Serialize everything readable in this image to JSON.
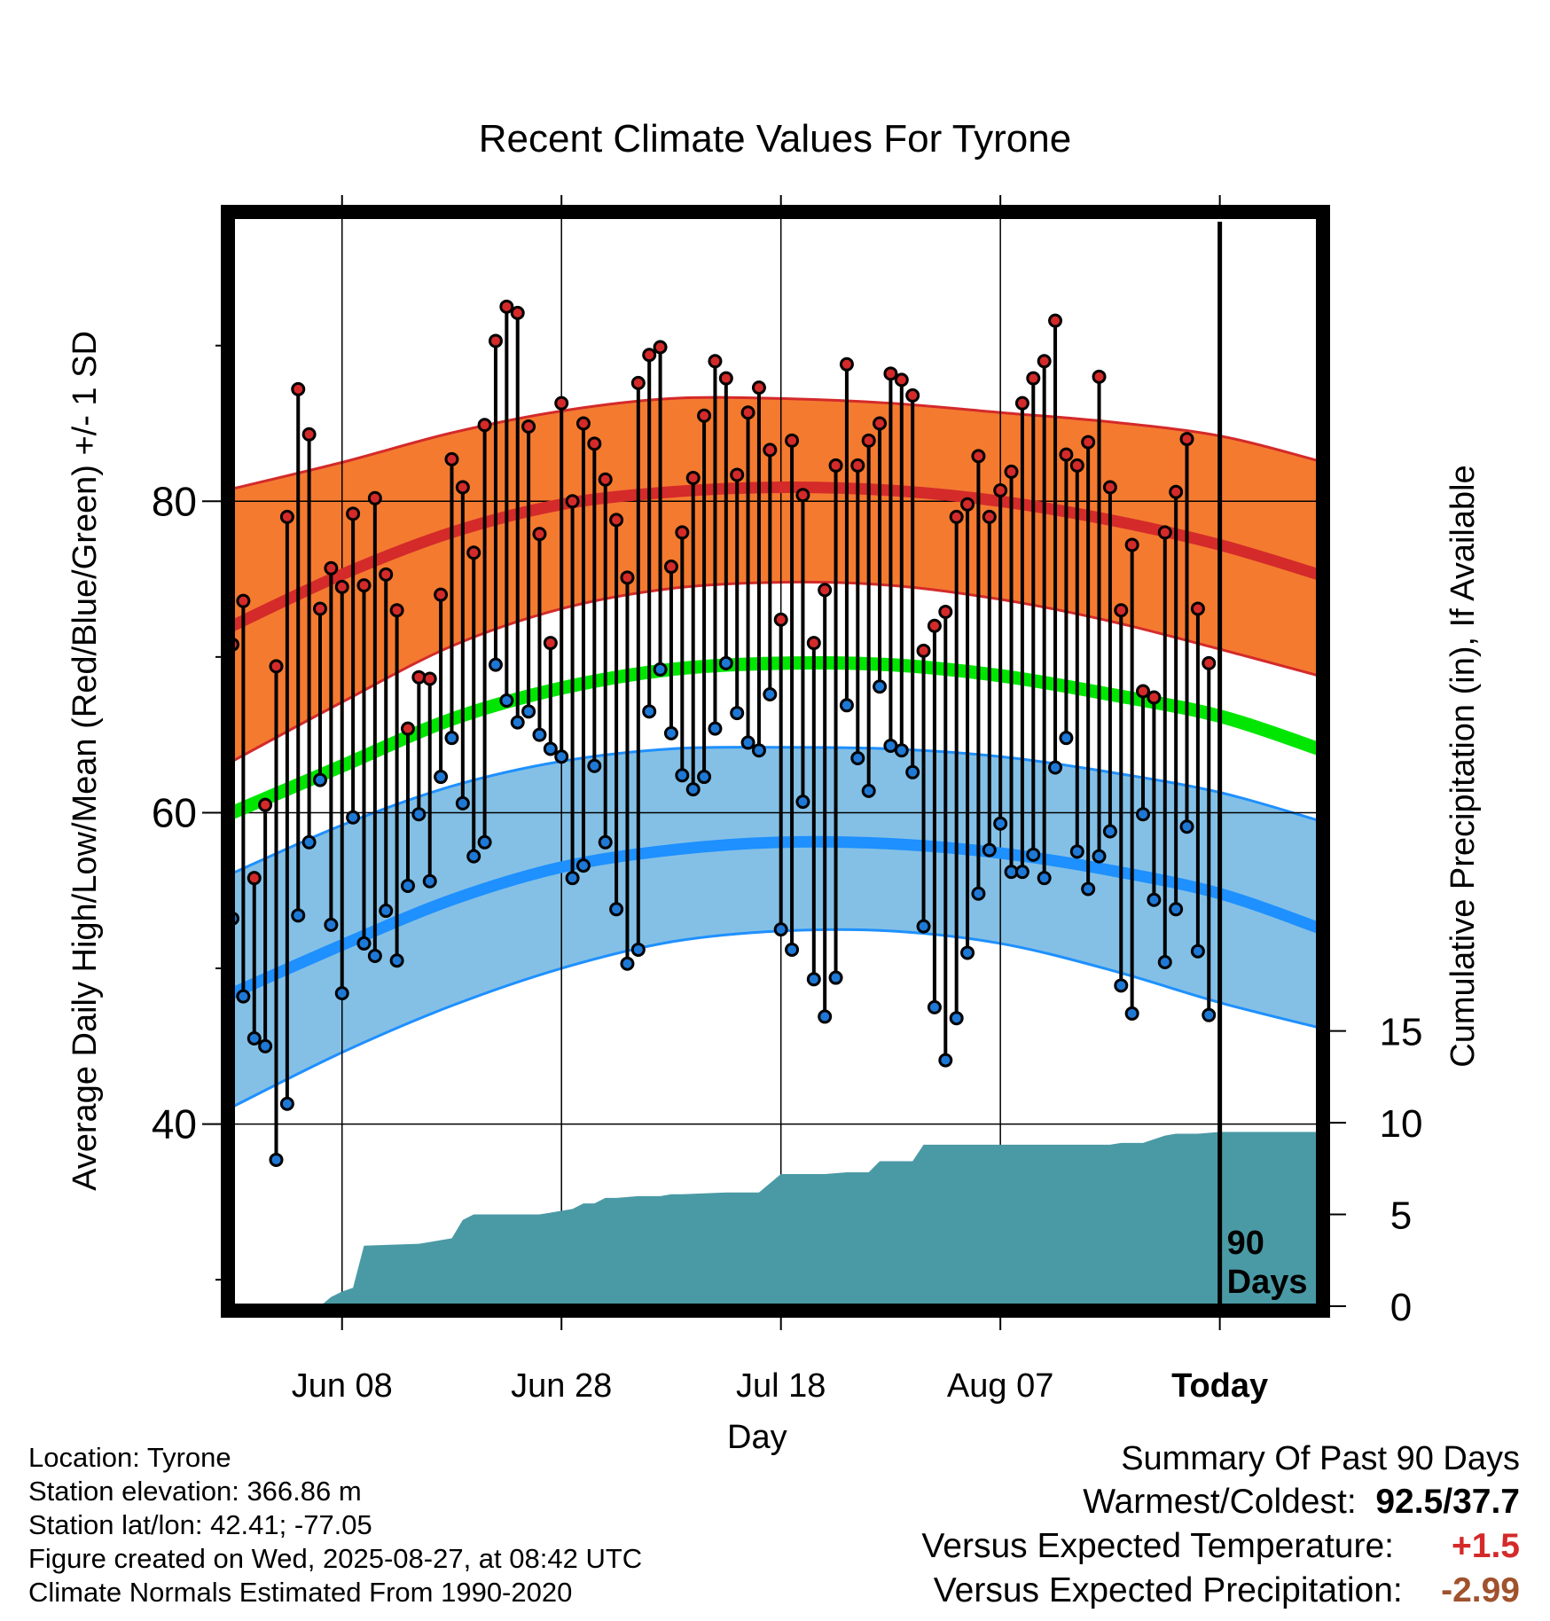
{
  "title": "Recent Climate Values For Tyrone",
  "info": {
    "location": "Location: Tyrone",
    "elevation": "Station elevation: 366.86 m",
    "latlon": "Station lat/lon: 42.41; -77.05",
    "created": "Figure created on Wed, 2025-08-27, at 08:42 UTC",
    "normals": "Climate Normals Estimated From 1990-2020"
  },
  "summary": {
    "title": "Summary Of Past 90 Days",
    "warmest_label": "Warmest/Coldest:",
    "warmest_value": "92.5/37.7",
    "temp_label": "Versus Expected Temperature:",
    "temp_value": "+1.5",
    "precip_label": "Versus Expected Precipitation:",
    "precip_value": "-2.99",
    "colors": {
      "temp": "#d42a2a",
      "precip": "#a0522d"
    }
  },
  "chart_data": {
    "type": "line",
    "title": "Recent Climate Values For Tyrone",
    "xlabel": "Day",
    "ylabel": "Average Daily High/Low/Mean (Red/Blue/Green) +/- 1 SD",
    "y2label": "Cumulative Precipitation (in), If Available",
    "xlim": [
      1,
      100
    ],
    "ylim": [
      28.3,
      98.3
    ],
    "y2lim": [
      0,
      59.4
    ],
    "x_ticks": [
      {
        "x": 11,
        "label": "Jun 08"
      },
      {
        "x": 31,
        "label": "Jun 28"
      },
      {
        "x": 51,
        "label": "Jul 18"
      },
      {
        "x": 71,
        "label": "Aug 07"
      },
      {
        "x": 91,
        "label": "Today",
        "bold": true
      }
    ],
    "y_ticks": [
      40,
      60,
      80
    ],
    "y_minor_ticks": [
      30,
      50,
      70,
      90
    ],
    "y2_ticks": [
      0,
      5,
      10,
      15
    ],
    "marker_label": {
      "x": 91,
      "text_line1": "90",
      "text_line2": "Days"
    },
    "grid": true,
    "colors": {
      "high_band": "#f47a30",
      "high_edge": "#d42a2a",
      "high_mean": "#d42a2a",
      "low_band": "#84c0e6",
      "low_edge": "#1e90ff",
      "low_mean": "#1e90ff",
      "mean": "#00e600",
      "precip": "#4a9aa5",
      "high_dot": "#d42a2a",
      "low_dot": "#1e78d6"
    },
    "normals": {
      "x": [
        1,
        11,
        21,
        31,
        41,
        51,
        61,
        71,
        81,
        91,
        100
      ],
      "high_mean": [
        72,
        75.3,
        78,
        79.8,
        80.6,
        80.9,
        80.7,
        80,
        78.8,
        77.2,
        75.3
      ],
      "high_sd_upper": [
        80.8,
        82.5,
        84.4,
        85.8,
        86.6,
        86.6,
        86.3,
        85.7,
        85.1,
        84.2,
        82.6
      ],
      "high_sd_lower": [
        63.3,
        67.1,
        70.7,
        73.1,
        74.4,
        74.8,
        74.6,
        73.7,
        72.3,
        70.5,
        68.8
      ],
      "mean": [
        60,
        63,
        66,
        68,
        69.2,
        69.6,
        69.5,
        68.8,
        67.6,
        66.2,
        64.1
      ],
      "low_mean": [
        48.4,
        51.5,
        54.4,
        56.5,
        57.6,
        58.1,
        58,
        57.4,
        56.3,
        54.8,
        52.6
      ],
      "low_sd_upper": [
        56.1,
        59.2,
        61.7,
        63.3,
        64.1,
        64.2,
        64.1,
        63.6,
        62.6,
        61.3,
        59.5
      ],
      "low_sd_lower": [
        41.1,
        44.6,
        47.6,
        50,
        51.7,
        52.4,
        52.4,
        51.6,
        49.9,
        47.8,
        46.2
      ]
    },
    "observed": {
      "x": [
        1,
        2,
        3,
        4,
        5,
        6,
        7,
        8,
        9,
        10,
        11,
        12,
        13,
        14,
        15,
        16,
        17,
        18,
        19,
        20,
        21,
        22,
        23,
        24,
        25,
        26,
        27,
        28,
        29,
        30,
        31,
        32,
        33,
        34,
        35,
        36,
        37,
        38,
        39,
        40,
        41,
        42,
        43,
        44,
        45,
        46,
        47,
        48,
        49,
        50,
        51,
        52,
        53,
        54,
        55,
        56,
        57,
        58,
        59,
        60,
        61,
        62,
        63,
        64,
        65,
        66,
        67,
        68,
        69,
        70,
        71,
        72,
        73,
        74,
        75,
        76,
        77,
        78,
        79,
        80,
        81,
        82,
        83,
        84,
        85,
        86,
        87,
        88,
        89,
        90
      ],
      "high": [
        70.8,
        73.6,
        55.8,
        60.5,
        69.4,
        79,
        87.2,
        84.3,
        73.1,
        75.7,
        74.5,
        79.2,
        74.6,
        80.2,
        75.3,
        73,
        65.4,
        68.7,
        68.6,
        74,
        82.7,
        80.9,
        76.7,
        84.9,
        90.3,
        92.5,
        92.1,
        84.8,
        77.9,
        70.9,
        86.3,
        80,
        85,
        83.7,
        81.4,
        78.8,
        75.1,
        87.6,
        89.4,
        89.9,
        75.8,
        78,
        81.5,
        85.5,
        89,
        87.9,
        81.7,
        85.7,
        87.3,
        83.3,
        72.4,
        83.9,
        80.4,
        70.9,
        74.3,
        82.3,
        88.8,
        82.3,
        83.9,
        85,
        88.2,
        87.8,
        86.8,
        70.4,
        72,
        72.9,
        79,
        79.8,
        82.9,
        79,
        80.7,
        81.9,
        86.3,
        87.9,
        89,
        91.6,
        83,
        82.3,
        83.8,
        88,
        80.9,
        73,
        77.2,
        67.8,
        67.4,
        78,
        80.6,
        84,
        73.1,
        69.6
      ],
      "low": [
        53.2,
        48.2,
        45.5,
        45,
        37.7,
        41.3,
        53.4,
        58.1,
        62.1,
        52.8,
        48.4,
        59.7,
        51.6,
        50.8,
        53.7,
        50.5,
        55.3,
        59.9,
        55.6,
        62.3,
        64.8,
        60.6,
        57.2,
        58.1,
        69.5,
        67.2,
        65.8,
        66.5,
        65,
        64.1,
        63.6,
        55.8,
        56.6,
        63,
        58.1,
        53.8,
        50.3,
        51.2,
        66.5,
        69.2,
        65.1,
        62.4,
        61.5,
        62.3,
        65.4,
        69.6,
        66.4,
        64.5,
        64,
        67.6,
        52.5,
        51.2,
        60.7,
        49.3,
        46.9,
        49.4,
        66.9,
        63.5,
        61.4,
        68.1,
        64.3,
        64,
        62.6,
        52.7,
        47.5,
        44.1,
        46.8,
        51,
        54.8,
        57.6,
        59.3,
        56.2,
        56.2,
        57.3,
        55.8,
        62.9,
        64.8,
        57.5,
        55.1,
        57.2,
        58.8,
        48.9,
        47.1,
        59.9,
        54.4,
        50.4,
        53.8,
        59.1,
        51.1,
        47
      ]
    },
    "precip_cumulative": {
      "x": [
        1,
        5,
        7,
        8,
        9,
        10,
        11,
        12,
        13,
        18,
        19,
        20,
        21,
        22,
        23,
        24,
        28,
        29,
        30,
        31,
        32,
        33,
        34,
        35,
        36,
        38,
        40,
        41,
        42,
        46,
        48,
        49,
        51,
        55,
        57,
        58,
        59,
        60,
        61,
        63,
        64,
        66,
        70,
        80,
        81,
        82,
        84,
        85,
        86,
        87,
        88,
        89,
        91,
        100
      ],
      "value": [
        0,
        0,
        0,
        0,
        0,
        0.5,
        0.8,
        1,
        3.3,
        3.4,
        3.5,
        3.6,
        3.7,
        4.7,
        5,
        5,
        5,
        5,
        5.1,
        5.2,
        5.3,
        5.6,
        5.6,
        5.9,
        5.9,
        6,
        6,
        6.1,
        6.1,
        6.2,
        6.2,
        6.2,
        7.2,
        7.2,
        7.3,
        7.3,
        7.3,
        7.9,
        7.9,
        7.9,
        8.8,
        8.8,
        8.8,
        8.8,
        8.8,
        8.9,
        8.9,
        9.1,
        9.3,
        9.4,
        9.4,
        9.4,
        9.5,
        9.5
      ]
    }
  }
}
